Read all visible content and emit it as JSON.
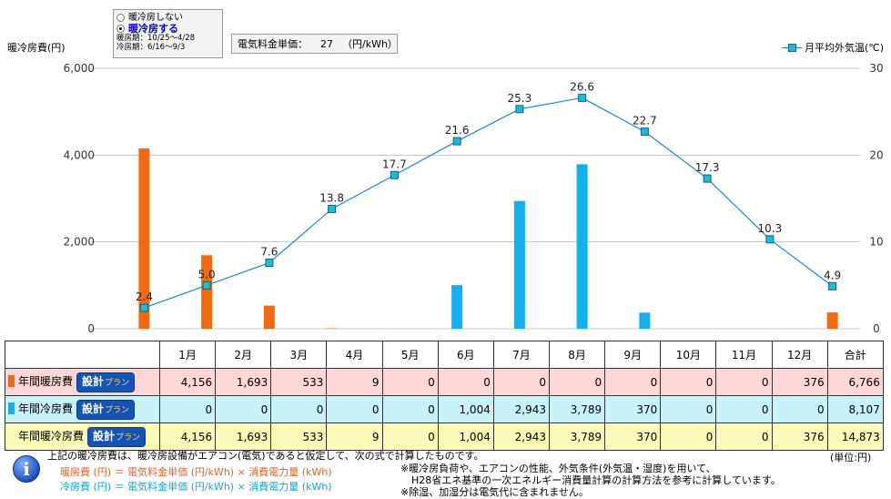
{
  "mode": {
    "options": [
      {
        "label": "暖冷房しない",
        "selected": false
      },
      {
        "label": "暖冷房する",
        "selected": true
      }
    ],
    "heating_period": "暖房期：10/25～4/28",
    "cooling_period": "冷房期：6/16～9/3"
  },
  "price": {
    "label": "電気料金単価：",
    "value": "27",
    "unit": "（円/kWh）"
  },
  "colors": {
    "heating": "#f26a10",
    "cooling": "#12b0ec",
    "temp_line": "#1e8bc3",
    "temp_marker": "#13c0d8"
  },
  "chart_data": {
    "type": "bar",
    "categories": [
      "1月",
      "2月",
      "3月",
      "4月",
      "5月",
      "6月",
      "7月",
      "8月",
      "9月",
      "10月",
      "11月",
      "12月"
    ],
    "y_left_label": "暖冷房費(円)",
    "y_left_ticks": [
      "0",
      "2,000",
      "4,000",
      "6,000"
    ],
    "ylim_left": [
      0,
      6000
    ],
    "y_right_label": "月平均外気温(℃)",
    "y_right_ticks": [
      "0",
      "10",
      "20",
      "30"
    ],
    "ylim_right": [
      0,
      30
    ],
    "series": [
      {
        "name": "年間暖房費",
        "type": "bar",
        "values": [
          4156,
          1693,
          533,
          9,
          0,
          0,
          0,
          0,
          0,
          0,
          0,
          376
        ]
      },
      {
        "name": "年間冷房費",
        "type": "bar",
        "values": [
          0,
          0,
          0,
          0,
          0,
          1004,
          2943,
          3789,
          370,
          0,
          0,
          0
        ]
      },
      {
        "name": "月平均外気温(℃)",
        "type": "line",
        "axis": "right",
        "values": [
          2.4,
          5.0,
          7.6,
          13.8,
          17.7,
          21.6,
          25.3,
          26.6,
          22.7,
          17.3,
          10.3,
          4.9
        ],
        "labels": [
          "2.4",
          "5.0",
          "7.6",
          "13.8",
          "17.7",
          "21.6",
          "25.3",
          "26.6",
          "22.7",
          "17.3",
          "10.3",
          "4.9"
        ]
      }
    ],
    "grid": true
  },
  "table": {
    "columns": [
      "1月",
      "2月",
      "3月",
      "4月",
      "5月",
      "6月",
      "7月",
      "8月",
      "9月",
      "10月",
      "11月",
      "12月",
      "合計"
    ],
    "plan_button": "設計",
    "plan_button_small": "プラン",
    "rows": [
      {
        "label": "年間暖房費",
        "values": [
          "4,156",
          "1,693",
          "533",
          "9",
          "0",
          "0",
          "0",
          "0",
          "0",
          "0",
          "0",
          "376",
          "6,766"
        ]
      },
      {
        "label": "年間冷房費",
        "values": [
          "0",
          "0",
          "0",
          "0",
          "0",
          "1,004",
          "2,943",
          "3,789",
          "370",
          "0",
          "0",
          "0",
          "8,107"
        ]
      },
      {
        "label": "年間暖冷房費",
        "values": [
          "4,156",
          "1,693",
          "533",
          "9",
          "0",
          "1,004",
          "2,943",
          "3,789",
          "370",
          "0",
          "0",
          "376",
          "14,873"
        ]
      }
    ]
  },
  "notes": {
    "intro": "上記の暖冷房費は、暖冷房設備がエアコン(電気)であると仮定して、次の式で計算したものです。",
    "unit": "(単位:円)",
    "heating_formula": "暖房費 (円) ＝ 電気料金単価 (円/kWh) × 消費電力量 (kWh)",
    "cooling_formula": "冷房費 (円) ＝ 電気料金単価 (円/kWh) × 消費電力量 (kWh)",
    "remark1": "※暖冷房負荷や、エアコンの性能、外気条件(外気温・湿度)を用いて、",
    "remark2": "H28省エネ基準の一次エネルギー消費量計算の計算方法を参考に計算しています。",
    "remark3": "※除湿、加湿分は電気代に含まれません。"
  }
}
